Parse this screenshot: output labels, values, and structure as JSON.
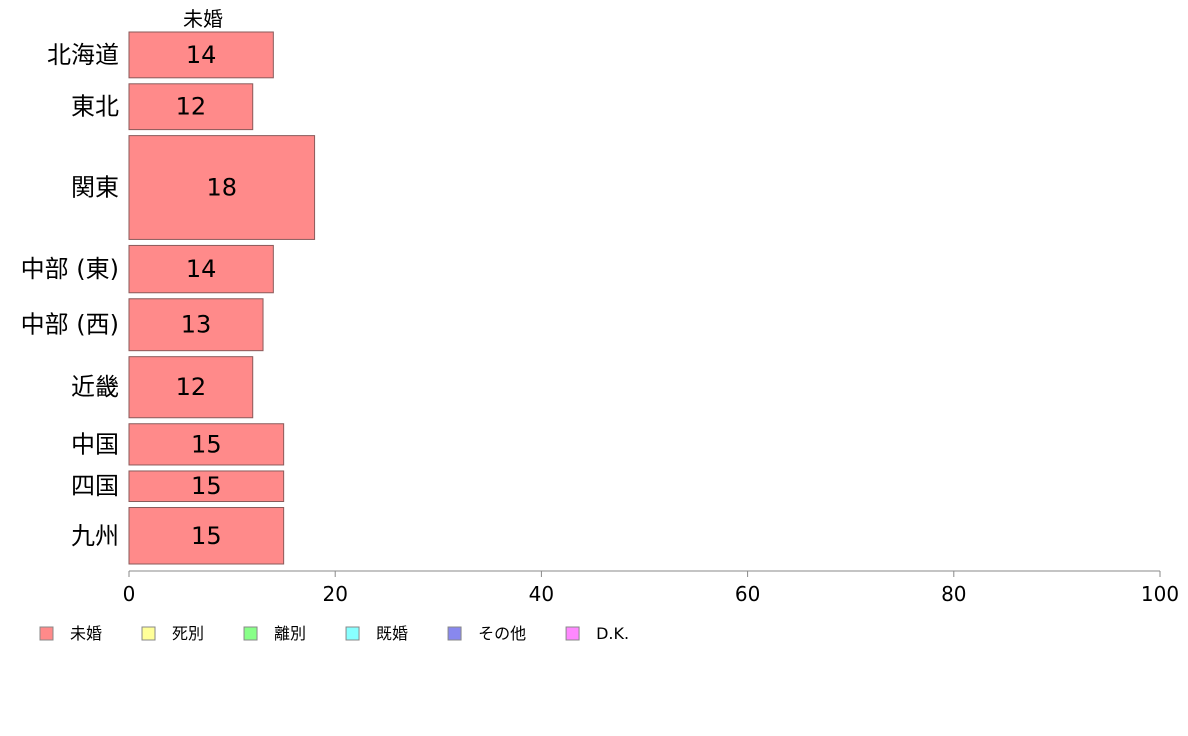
{
  "chart_data": {
    "type": "bar",
    "orientation": "horizontal",
    "series_title": "未婚",
    "categories": [
      "北海道",
      "東北",
      "関東",
      "中部 (東)",
      "中部 (西)",
      "近畿",
      "中国",
      "四国",
      "九州"
    ],
    "series": [
      {
        "name": "未婚",
        "values": [
          14,
          12,
          18,
          14,
          13,
          12,
          15,
          15,
          15
        ],
        "color": "#ff8a8a"
      }
    ],
    "category_weights": [
      1.5,
      1.5,
      3.4,
      1.55,
      1.7,
      2.0,
      1.35,
      1.0,
      1.85
    ],
    "xlim": [
      0,
      100
    ],
    "xticks": [
      0,
      20,
      40,
      60,
      80,
      100
    ],
    "grid": false,
    "legend_position": "bottom-left",
    "legend": [
      {
        "label": "未婚",
        "color": "#ff8a8a"
      },
      {
        "label": "死別",
        "color": "#ffff99"
      },
      {
        "label": "離別",
        "color": "#88ff88"
      },
      {
        "label": "既婚",
        "color": "#88ffff"
      },
      {
        "label": "その他",
        "color": "#8888ee"
      },
      {
        "label": "D.K.",
        "color": "#ff88ff"
      }
    ]
  }
}
